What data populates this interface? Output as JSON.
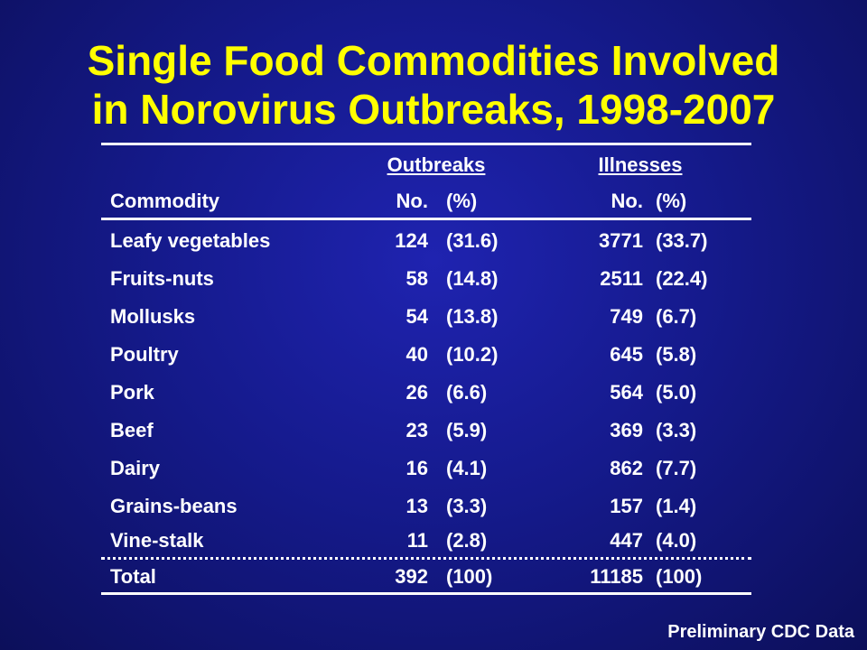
{
  "title": {
    "line1": "Single Food Commodities Involved",
    "line2": "in Norovirus Outbreaks, 1998-2007"
  },
  "table": {
    "group_headers": {
      "outbreaks": "Outbreaks",
      "illnesses": "Illnesses"
    },
    "column_headers": {
      "commodity": "Commodity",
      "outbreaks_no": "No.",
      "outbreaks_pct": "(%)",
      "illnesses_no": "No.",
      "illnesses_pct": "(%)"
    },
    "rows": [
      {
        "commodity": "Leafy vegetables",
        "outbreaks_no": "124",
        "outbreaks_pct": "(31.6)",
        "illnesses_no": "3771",
        "illnesses_pct": "(33.7)"
      },
      {
        "commodity": "Fruits-nuts",
        "outbreaks_no": "58",
        "outbreaks_pct": "(14.8)",
        "illnesses_no": "2511",
        "illnesses_pct": "(22.4)"
      },
      {
        "commodity": "Mollusks",
        "outbreaks_no": "54",
        "outbreaks_pct": "(13.8)",
        "illnesses_no": "749",
        "illnesses_pct": "(6.7)"
      },
      {
        "commodity": "Poultry",
        "outbreaks_no": "40",
        "outbreaks_pct": "(10.2)",
        "illnesses_no": "645",
        "illnesses_pct": "(5.8)"
      },
      {
        "commodity": "Pork",
        "outbreaks_no": "26",
        "outbreaks_pct": "(6.6)",
        "illnesses_no": "564",
        "illnesses_pct": "(5.0)"
      },
      {
        "commodity": "Beef",
        "outbreaks_no": "23",
        "outbreaks_pct": "(5.9)",
        "illnesses_no": "369",
        "illnesses_pct": "(3.3)"
      },
      {
        "commodity": "Dairy",
        "outbreaks_no": "16",
        "outbreaks_pct": "(4.1)",
        "illnesses_no": "862",
        "illnesses_pct": "(7.7)"
      },
      {
        "commodity": "Grains-beans",
        "outbreaks_no": "13",
        "outbreaks_pct": "(3.3)",
        "illnesses_no": "157",
        "illnesses_pct": "(1.4)"
      },
      {
        "commodity": "Vine-stalk",
        "outbreaks_no": "11",
        "outbreaks_pct": "(2.8)",
        "illnesses_no": "447",
        "illnesses_pct": "(4.0)"
      }
    ],
    "total": {
      "commodity": "Total",
      "outbreaks_no": "392",
      "outbreaks_pct": "(100)",
      "illnesses_no": "11185",
      "illnesses_pct": "(100)"
    }
  },
  "footer": "Preliminary CDC Data",
  "colors": {
    "title": "#ffff00",
    "background": "#151a8c",
    "text": "#ffffff"
  }
}
